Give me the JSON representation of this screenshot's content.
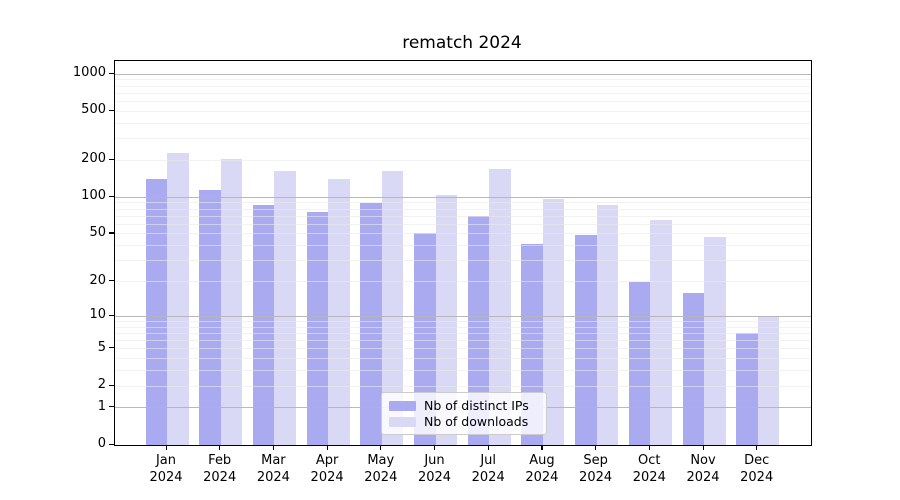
{
  "title": "rematch 2024",
  "chart_data": {
    "type": "bar",
    "title": "rematch 2024",
    "categories": [
      "Jan 2024",
      "Feb 2024",
      "Mar 2024",
      "Apr 2024",
      "May 2024",
      "Jun 2024",
      "Jul 2024",
      "Aug 2024",
      "Sep 2024",
      "Oct 2024",
      "Nov 2024",
      "Dec 2024"
    ],
    "x_month_labels": [
      "Jan",
      "Feb",
      "Mar",
      "Apr",
      "May",
      "Jun",
      "Jul",
      "Aug",
      "Sep",
      "Oct",
      "Nov",
      "Dec"
    ],
    "x_year_label": "2024",
    "series": [
      {
        "name": "Nb of distinct IPs",
        "color": "#aaaaf0",
        "values": [
          140,
          115,
          87,
          76,
          89,
          51,
          70,
          41,
          49,
          20,
          16,
          7
        ]
      },
      {
        "name": "Nb of downloads",
        "color": "#d9d9f6",
        "values": [
          228,
          205,
          165,
          140,
          164,
          105,
          170,
          96,
          87,
          65,
          47,
          10
        ]
      }
    ],
    "y_axis": {
      "scale": "log1p",
      "tick_values": [
        0,
        1,
        2,
        5,
        10,
        20,
        50,
        100,
        200,
        500,
        1000
      ],
      "tick_labels": [
        "0",
        "1",
        "2",
        "5",
        "10",
        "20",
        "50",
        "100",
        "200",
        "500",
        "1000"
      ],
      "major_grid_values": [
        1,
        10,
        100,
        1000
      ],
      "minor_grid_values": [
        2,
        3,
        4,
        5,
        6,
        7,
        8,
        9,
        20,
        30,
        40,
        50,
        60,
        70,
        80,
        90,
        200,
        300,
        400,
        500,
        600,
        700,
        800,
        900
      ],
      "top_value": 1275,
      "ylim": [
        0,
        1275
      ]
    },
    "legend": {
      "position": "lower-center",
      "entries": [
        {
          "label": "Nb of distinct IPs",
          "color": "#aaaaf0"
        },
        {
          "label": "Nb of downloads",
          "color": "#d9d9f6"
        }
      ]
    },
    "grid": true
  },
  "colors": {
    "background": "#ffffff",
    "axis": "#000000",
    "text": "#000000",
    "major_grid": "#b5b5b5",
    "minor_grid": "#e9e9e9",
    "bar_distinct_ips": "#aaaaf0",
    "bar_downloads": "#d9d9f6",
    "legend_border": "#cccccc"
  }
}
